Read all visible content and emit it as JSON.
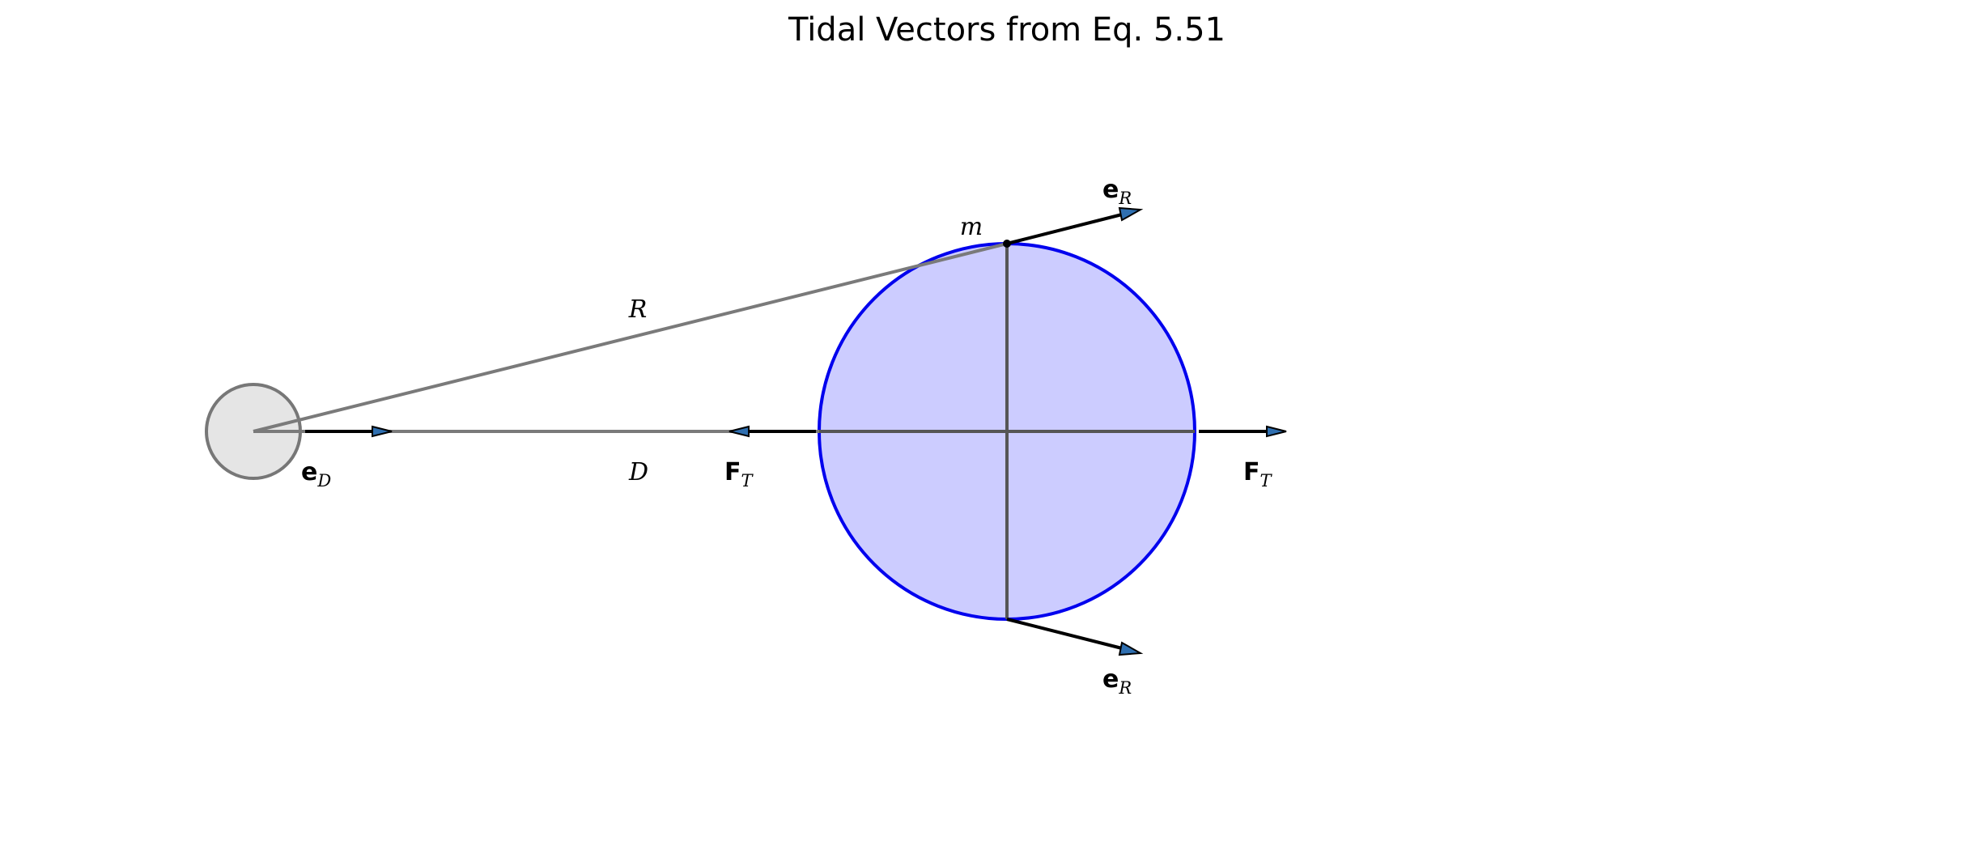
{
  "title": "Tidal Vectors from Eq. 5.51",
  "labels": {
    "mass": "m",
    "radius": "R",
    "distance": "D",
    "e_R_top": {
      "base": "e",
      "sub": "R"
    },
    "e_R_bottom": {
      "base": "e",
      "sub": "R"
    },
    "e_D": {
      "base": "e",
      "sub": "D"
    },
    "F_T_left": {
      "base": "F",
      "sub": "T"
    },
    "F_T_right": {
      "base": "F",
      "sub": "T"
    }
  },
  "colors": {
    "body_fill": "#ccccff",
    "body_stroke": "#0000ee",
    "source_fill": "#e5e5e5",
    "source_stroke": "#777777",
    "guide_line": "#7a7a7a",
    "axis_line": "#555555",
    "arrow": "#000000",
    "arrow_head": "#2f6fb0"
  }
}
